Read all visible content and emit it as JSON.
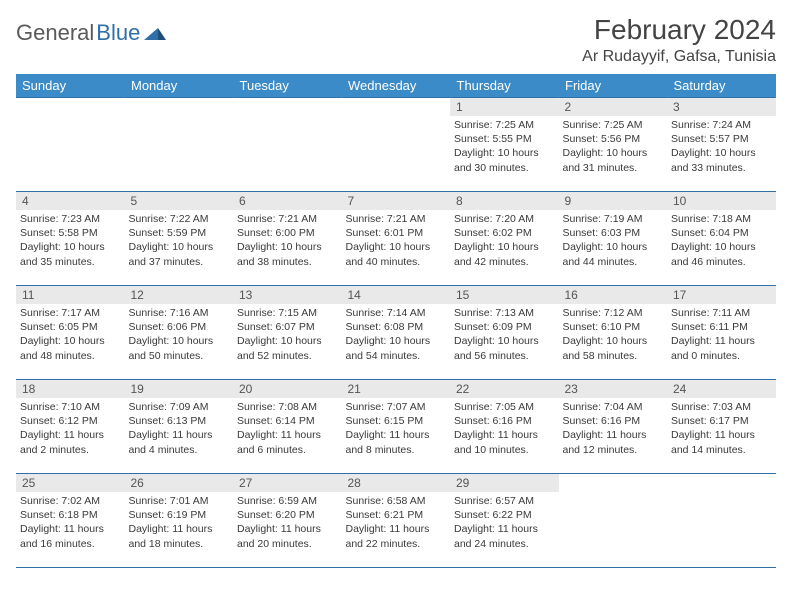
{
  "brand": {
    "name1": "General",
    "name2": "Blue"
  },
  "title": "February 2024",
  "location": "Ar Rudayyif, Gafsa, Tunisia",
  "colors": {
    "header_bg": "#3b8bc9",
    "header_text": "#ffffff",
    "rule": "#2f6fa8",
    "daynum_bg": "#e9e9e9",
    "text": "#3a3a3a",
    "brand_blue": "#2f6fa8",
    "page_bg": "#ffffff"
  },
  "typography": {
    "title_fontsize": 28,
    "location_fontsize": 16,
    "header_fontsize": 13,
    "daynum_fontsize": 12,
    "body_fontsize": 10.5
  },
  "weekdays": [
    "Sunday",
    "Monday",
    "Tuesday",
    "Wednesday",
    "Thursday",
    "Friday",
    "Saturday"
  ],
  "weeks": [
    [
      {
        "empty": true
      },
      {
        "empty": true
      },
      {
        "empty": true
      },
      {
        "empty": true
      },
      {
        "n": "1",
        "sr": "7:25 AM",
        "ss": "5:55 PM",
        "dl": "10 hours and 30 minutes."
      },
      {
        "n": "2",
        "sr": "7:25 AM",
        "ss": "5:56 PM",
        "dl": "10 hours and 31 minutes."
      },
      {
        "n": "3",
        "sr": "7:24 AM",
        "ss": "5:57 PM",
        "dl": "10 hours and 33 minutes."
      }
    ],
    [
      {
        "n": "4",
        "sr": "7:23 AM",
        "ss": "5:58 PM",
        "dl": "10 hours and 35 minutes."
      },
      {
        "n": "5",
        "sr": "7:22 AM",
        "ss": "5:59 PM",
        "dl": "10 hours and 37 minutes."
      },
      {
        "n": "6",
        "sr": "7:21 AM",
        "ss": "6:00 PM",
        "dl": "10 hours and 38 minutes."
      },
      {
        "n": "7",
        "sr": "7:21 AM",
        "ss": "6:01 PM",
        "dl": "10 hours and 40 minutes."
      },
      {
        "n": "8",
        "sr": "7:20 AM",
        "ss": "6:02 PM",
        "dl": "10 hours and 42 minutes."
      },
      {
        "n": "9",
        "sr": "7:19 AM",
        "ss": "6:03 PM",
        "dl": "10 hours and 44 minutes."
      },
      {
        "n": "10",
        "sr": "7:18 AM",
        "ss": "6:04 PM",
        "dl": "10 hours and 46 minutes."
      }
    ],
    [
      {
        "n": "11",
        "sr": "7:17 AM",
        "ss": "6:05 PM",
        "dl": "10 hours and 48 minutes."
      },
      {
        "n": "12",
        "sr": "7:16 AM",
        "ss": "6:06 PM",
        "dl": "10 hours and 50 minutes."
      },
      {
        "n": "13",
        "sr": "7:15 AM",
        "ss": "6:07 PM",
        "dl": "10 hours and 52 minutes."
      },
      {
        "n": "14",
        "sr": "7:14 AM",
        "ss": "6:08 PM",
        "dl": "10 hours and 54 minutes."
      },
      {
        "n": "15",
        "sr": "7:13 AM",
        "ss": "6:09 PM",
        "dl": "10 hours and 56 minutes."
      },
      {
        "n": "16",
        "sr": "7:12 AM",
        "ss": "6:10 PM",
        "dl": "10 hours and 58 minutes."
      },
      {
        "n": "17",
        "sr": "7:11 AM",
        "ss": "6:11 PM",
        "dl": "11 hours and 0 minutes."
      }
    ],
    [
      {
        "n": "18",
        "sr": "7:10 AM",
        "ss": "6:12 PM",
        "dl": "11 hours and 2 minutes."
      },
      {
        "n": "19",
        "sr": "7:09 AM",
        "ss": "6:13 PM",
        "dl": "11 hours and 4 minutes."
      },
      {
        "n": "20",
        "sr": "7:08 AM",
        "ss": "6:14 PM",
        "dl": "11 hours and 6 minutes."
      },
      {
        "n": "21",
        "sr": "7:07 AM",
        "ss": "6:15 PM",
        "dl": "11 hours and 8 minutes."
      },
      {
        "n": "22",
        "sr": "7:05 AM",
        "ss": "6:16 PM",
        "dl": "11 hours and 10 minutes."
      },
      {
        "n": "23",
        "sr": "7:04 AM",
        "ss": "6:16 PM",
        "dl": "11 hours and 12 minutes."
      },
      {
        "n": "24",
        "sr": "7:03 AM",
        "ss": "6:17 PM",
        "dl": "11 hours and 14 minutes."
      }
    ],
    [
      {
        "n": "25",
        "sr": "7:02 AM",
        "ss": "6:18 PM",
        "dl": "11 hours and 16 minutes."
      },
      {
        "n": "26",
        "sr": "7:01 AM",
        "ss": "6:19 PM",
        "dl": "11 hours and 18 minutes."
      },
      {
        "n": "27",
        "sr": "6:59 AM",
        "ss": "6:20 PM",
        "dl": "11 hours and 20 minutes."
      },
      {
        "n": "28",
        "sr": "6:58 AM",
        "ss": "6:21 PM",
        "dl": "11 hours and 22 minutes."
      },
      {
        "n": "29",
        "sr": "6:57 AM",
        "ss": "6:22 PM",
        "dl": "11 hours and 24 minutes."
      },
      {
        "empty": true
      },
      {
        "empty": true
      }
    ]
  ],
  "labels": {
    "sunrise": "Sunrise: ",
    "sunset": "Sunset: ",
    "daylight": "Daylight: "
  }
}
